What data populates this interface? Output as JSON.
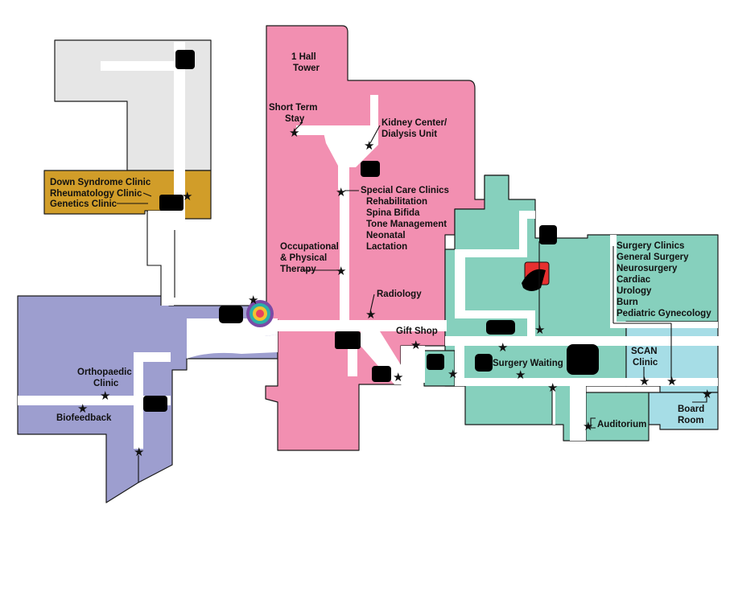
{
  "colors": {
    "gray_wing": "#e6e6e6",
    "gold_wing": "#d19d29",
    "purple_wing": "#9d9ecf",
    "pink_wing": "#f28fb1",
    "teal_wing": "#86d0bd",
    "lightblue_wing": "#a6dde6",
    "hallway": "#ffffff",
    "accent_red": "#e63030",
    "logo_purple": "#7a4aa6"
  },
  "labels": {
    "hall_tower": [
      "1 Hall",
      "Tower"
    ],
    "short_term_stay": [
      "Short Term",
      "Stay"
    ],
    "kidney_center": [
      "Kidney Center/",
      "Dialysis Unit"
    ],
    "special_care_title": "Special Care Clinics",
    "special_care_items": [
      "Rehabilitation",
      "Spina Bifida",
      "Tone Management",
      "Neonatal",
      "Lactation"
    ],
    "occupational_therapy": [
      "Occupational",
      "& Physical",
      "Therapy"
    ],
    "radiology": "Radiology",
    "gift_shop": "Gift Shop",
    "down_syndrome_clinic": "Down Syndrome Clinic",
    "rheumatology_clinic": "Rheumatology Clinic",
    "genetics_clinic": "Genetics Clinic",
    "orthopaedic_clinic": [
      "Orthopaedic",
      "Clinic"
    ],
    "biofeedback": "Biofeedback",
    "surgery_clinics_title": "Surgery Clinics",
    "surgery_clinics_items": [
      "General Surgery",
      "Neurosurgery",
      "Cardiac",
      "Urology",
      "Burn",
      "Pediatric Gynecology"
    ],
    "scan_clinic": [
      "SCAN",
      "Clinic"
    ],
    "surgery_waiting": "Surgery Waiting",
    "auditorium": "Auditorium",
    "board_room": [
      "Board",
      "Room"
    ]
  },
  "icons": {
    "star": "★",
    "location_marker": "star-marker-icon",
    "elevator_blocks": "redacted-elevator-icon",
    "medical_sign": "red-medical-sign-icon",
    "logo": "hospital-logo-icon"
  }
}
